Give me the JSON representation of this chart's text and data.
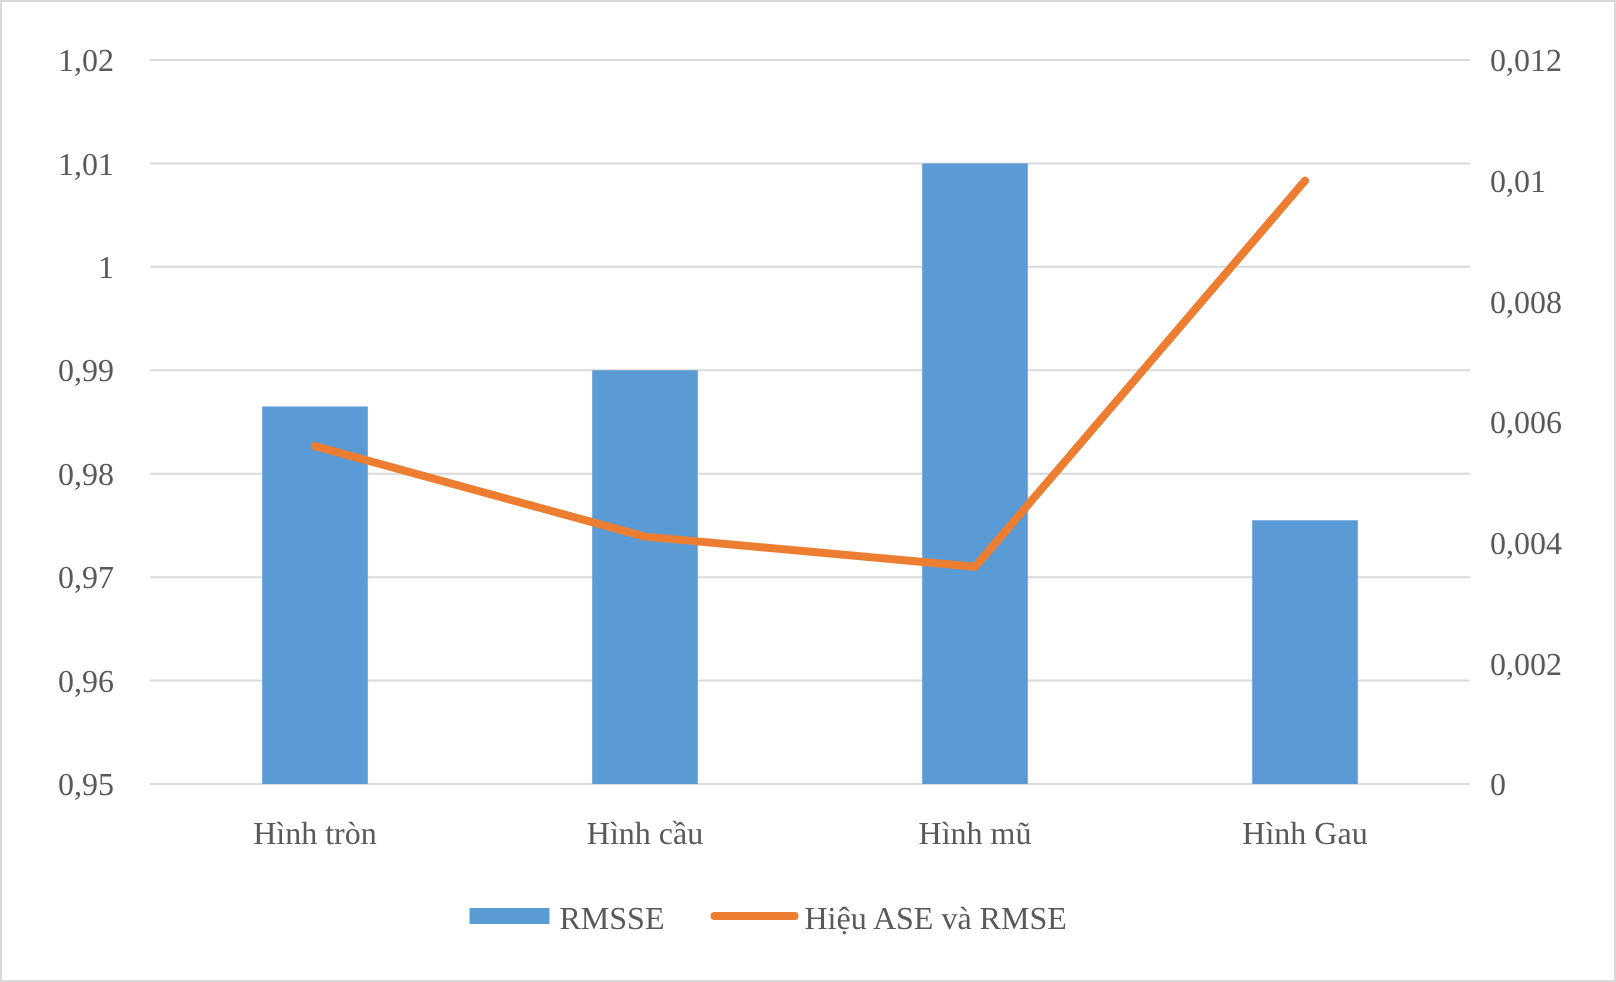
{
  "chart_data": {
    "type": "bar",
    "categories": [
      "Hình tròn",
      "Hình cầu",
      "Hình mũ",
      "Hình Gau"
    ],
    "series": [
      {
        "name": "RMSSE",
        "color": "#5b9bd5",
        "values": [
          0.9865,
          0.99,
          1.01,
          0.9755
        ]
      },
      {
        "name": "Hiệu ASE và RMSE",
        "type": "line",
        "axis": "y2",
        "color": "#ed7d31",
        "values": [
          0.0056,
          0.0041,
          0.0036,
          0.01
        ]
      }
    ],
    "ylim": [
      0.95,
      1.02
    ],
    "yticks": [
      {
        "value": 0.95,
        "label": "0,95"
      },
      {
        "value": 0.96,
        "label": "0,96"
      },
      {
        "value": 0.97,
        "label": "0,97"
      },
      {
        "value": 0.98,
        "label": "0,98"
      },
      {
        "value": 0.99,
        "label": "0,99"
      },
      {
        "value": 1,
        "label": "1"
      },
      {
        "value": 1.01,
        "label": "1,01"
      },
      {
        "value": 1.02,
        "label": "1,02"
      }
    ],
    "y2lim": [
      0,
      0.012
    ],
    "y2ticks": [
      0,
      {
        "value": 0.002,
        "label": "0,002"
      },
      {
        "value": 0.004,
        "label": "0,004"
      },
      {
        "value": 0.006,
        "label": "0,006"
      },
      {
        "value": 0.008,
        "label": "0,008"
      },
      {
        "value": 0.01,
        "label": "0,01"
      },
      {
        "value": 0.012,
        "label": "0,012"
      }
    ],
    "grid": "y",
    "legend": "bottom"
  }
}
